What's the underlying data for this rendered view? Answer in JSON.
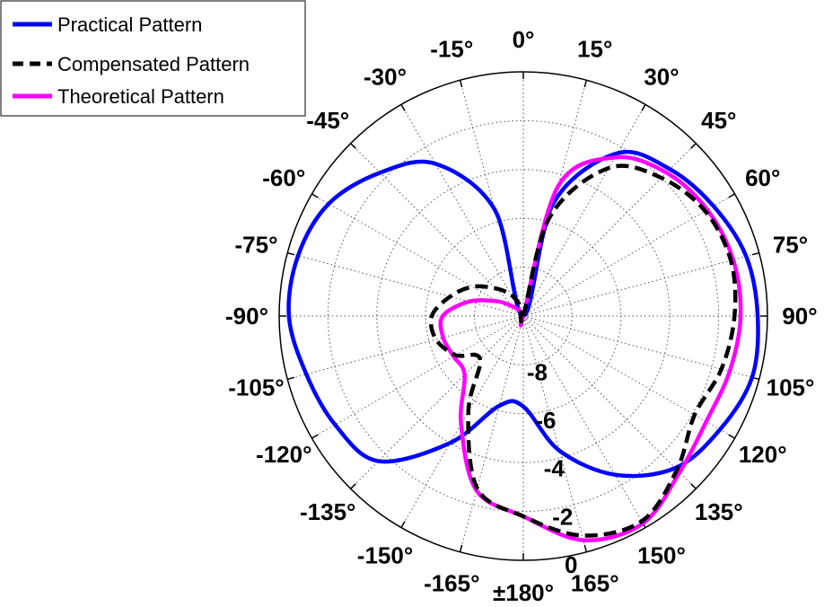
{
  "chart_data": {
    "type": "polar-line",
    "title": "",
    "theta_zero_location": "top",
    "theta_direction": "clockwise",
    "angle_ticks_deg": [
      0,
      15,
      30,
      45,
      60,
      75,
      90,
      105,
      120,
      135,
      150,
      165,
      180,
      -165,
      -150,
      -135,
      -120,
      -105,
      -90,
      -75,
      -60,
      -45,
      -30,
      -15
    ],
    "angle_tick_labels": [
      "0°",
      "15°",
      "30°",
      "45°",
      "60°",
      "75°",
      "90°",
      "105°",
      "120°",
      "135°",
      "150°",
      "165°",
      "±180°",
      "-165°",
      "-150°",
      "-135°",
      "-120°",
      "-105°",
      "-90°",
      "-75°",
      "-60°",
      "-45°",
      "-30°",
      "-15°"
    ],
    "radial_range": [
      -10,
      0
    ],
    "radial_ticks": [
      -8,
      -6,
      -4,
      -2,
      0
    ],
    "radial_tick_labels": [
      "-8",
      "-6",
      "-4",
      "-2",
      "0"
    ],
    "radial_label_angle_deg": 170,
    "grid": true,
    "legend_position": "top-left",
    "series": [
      {
        "name": "Practical Pattern",
        "color": "#0000ff",
        "style": "solid",
        "theta_deg": [
          0,
          15,
          30,
          45,
          60,
          75,
          90,
          105,
          120,
          135,
          150,
          165,
          180,
          -165,
          -150,
          -135,
          -120,
          -105,
          -90,
          -75,
          -60,
          -45,
          -30,
          -15,
          0
        ],
        "r": [
          -10,
          -5.2,
          -2.3,
          -1.5,
          -1.0,
          -0.55,
          -0.4,
          -0.3,
          -0.7,
          -1.2,
          -2.5,
          -4.3,
          -6.3,
          -6.2,
          -4.0,
          -1.6,
          -1.1,
          -0.8,
          -0.4,
          -0.45,
          -0.8,
          -1.7,
          -2.8,
          -5.5,
          -10
        ]
      },
      {
        "name": "Compensated Pattern",
        "color": "#000000",
        "style": "dashed",
        "theta_deg": [
          0,
          15,
          30,
          45,
          60,
          75,
          90,
          105,
          120,
          135,
          150,
          165,
          180,
          -165,
          -150,
          -135,
          -120,
          -105,
          -90,
          -75,
          -60,
          -45,
          -30,
          -15,
          0
        ],
        "r": [
          -10,
          -5.8,
          -3.0,
          -2.0,
          -1.4,
          -1.2,
          -1.35,
          -1.6,
          -1.9,
          -1.1,
          -0.3,
          -0.7,
          -1.8,
          -2.7,
          -5.5,
          -7.5,
          -6.8,
          -6.3,
          -6.25,
          -6.9,
          -7.6,
          -8.4,
          -9.0,
          -9.6,
          -10
        ]
      },
      {
        "name": "Theoretical Pattern",
        "color": "#ff00ff",
        "style": "solid",
        "theta_deg": [
          0,
          15,
          30,
          45,
          60,
          75,
          90,
          105,
          120,
          135,
          150,
          165,
          180,
          -165,
          -150,
          -135,
          -120,
          -105,
          -90,
          -75,
          -60,
          -45,
          -30,
          -15,
          0
        ],
        "r": [
          -10,
          -4.5,
          -2.5,
          -1.7,
          -1.3,
          -1.1,
          -1.1,
          -1.25,
          -1.35,
          -0.95,
          -0.2,
          -0.5,
          -1.8,
          -2.6,
          -4.9,
          -6.6,
          -6.7,
          -6.6,
          -6.7,
          -7.7,
          -8.8,
          -9.5,
          -9.8,
          -9.95,
          -10
        ]
      }
    ]
  }
}
